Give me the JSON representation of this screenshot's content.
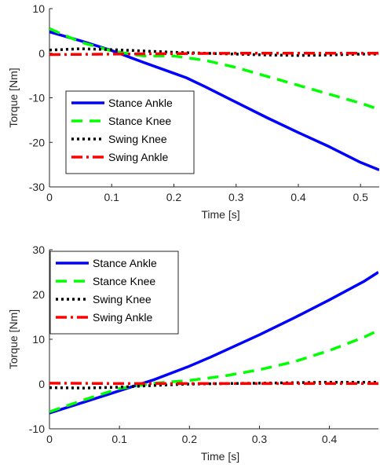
{
  "chart_data": [
    {
      "type": "line",
      "xlabel": "Time [s]",
      "ylabel": "Torque [Nm]",
      "xlim": [
        0,
        0.53
      ],
      "ylim": [
        -30,
        10
      ],
      "xticks": [
        0,
        0.1,
        0.2,
        0.3,
        0.4,
        0.5
      ],
      "xtick_labels": [
        "0",
        "0.1",
        "0.2",
        "0.3",
        "0.4",
        "0.5"
      ],
      "yticks": [
        -30,
        -20,
        -10,
        0,
        10
      ],
      "ytick_labels": [
        "-30",
        "-20",
        "-10",
        "0",
        "10"
      ],
      "grid": false,
      "legend_position": "lower-left",
      "series": [
        {
          "name": "Stance Ankle",
          "color": "#0000ff",
          "style": "solid",
          "x": [
            0,
            0.05,
            0.1,
            0.15,
            0.2,
            0.22,
            0.25,
            0.3,
            0.35,
            0.4,
            0.45,
            0.5,
            0.53
          ],
          "y": [
            4.8,
            2.8,
            0.6,
            -2.0,
            -4.5,
            -5.5,
            -7.5,
            -11.0,
            -14.5,
            -17.8,
            -21.0,
            -24.5,
            -26.2
          ]
        },
        {
          "name": "Stance Knee",
          "color": "#00ff00",
          "style": "dashed",
          "x": [
            0,
            0.05,
            0.1,
            0.15,
            0.2,
            0.25,
            0.3,
            0.35,
            0.4,
            0.45,
            0.5,
            0.53
          ],
          "y": [
            5.5,
            2.5,
            0.5,
            -0.6,
            -0.6,
            -1.6,
            -3.2,
            -5.2,
            -7.2,
            -9.2,
            -11.2,
            -12.6
          ]
        },
        {
          "name": "Swing Knee",
          "color": "#000000",
          "style": "dotted",
          "x": [
            0,
            0.05,
            0.1,
            0.15,
            0.2,
            0.25,
            0.3,
            0.35,
            0.4,
            0.45,
            0.5,
            0.53
          ],
          "y": [
            0.7,
            1.0,
            0.8,
            0.5,
            0.2,
            0.0,
            -0.2,
            -0.4,
            -0.5,
            -0.4,
            -0.2,
            -0.2
          ]
        },
        {
          "name": "Swing Ankle",
          "color": "#ff0000",
          "style": "dashdot",
          "x": [
            0,
            0.1,
            0.2,
            0.3,
            0.4,
            0.5,
            0.53
          ],
          "y": [
            -0.3,
            -0.2,
            -0.1,
            0.0,
            0.0,
            0.0,
            0.0
          ]
        }
      ]
    },
    {
      "type": "line",
      "xlabel": "Time [s]",
      "ylabel": "Torque [Nm]",
      "xlim": [
        0,
        0.47
      ],
      "ylim": [
        -10,
        30
      ],
      "xticks": [
        0,
        0.1,
        0.2,
        0.3,
        0.4
      ],
      "xtick_labels": [
        "0",
        "0.1",
        "0.2",
        "0.3",
        "0.4"
      ],
      "yticks": [
        -10,
        0,
        10,
        20,
        30
      ],
      "ytick_labels": [
        "-10",
        "0",
        "10",
        "20",
        "30"
      ],
      "grid": false,
      "legend_position": "top-left",
      "series": [
        {
          "name": "Stance Ankle",
          "color": "#0000ff",
          "style": "solid",
          "x": [
            0,
            0.05,
            0.1,
            0.15,
            0.2,
            0.23,
            0.3,
            0.35,
            0.4,
            0.45,
            0.47
          ],
          "y": [
            -6.5,
            -4.0,
            -1.5,
            1.0,
            4.0,
            6.0,
            11.0,
            14.8,
            18.8,
            23.0,
            25.0
          ]
        },
        {
          "name": "Stance Knee",
          "color": "#00ff00",
          "style": "dashed",
          "x": [
            0,
            0.05,
            0.1,
            0.15,
            0.2,
            0.25,
            0.3,
            0.35,
            0.4,
            0.45,
            0.47
          ],
          "y": [
            -6.2,
            -3.5,
            -1.0,
            0.2,
            0.8,
            1.8,
            3.2,
            5.0,
            7.5,
            10.5,
            12.0
          ]
        },
        {
          "name": "Swing Knee",
          "color": "#000000",
          "style": "dotted",
          "x": [
            0,
            0.05,
            0.1,
            0.15,
            0.2,
            0.25,
            0.3,
            0.35,
            0.4,
            0.45,
            0.47
          ],
          "y": [
            -0.8,
            -0.9,
            -0.7,
            -0.3,
            0.0,
            0.1,
            0.2,
            0.3,
            0.4,
            0.4,
            0.4
          ]
        },
        {
          "name": "Swing Ankle",
          "color": "#ff0000",
          "style": "dashdot",
          "x": [
            0,
            0.1,
            0.2,
            0.3,
            0.4,
            0.47
          ],
          "y": [
            0.2,
            0.1,
            0.1,
            0.1,
            0.1,
            0.1
          ]
        }
      ]
    }
  ]
}
